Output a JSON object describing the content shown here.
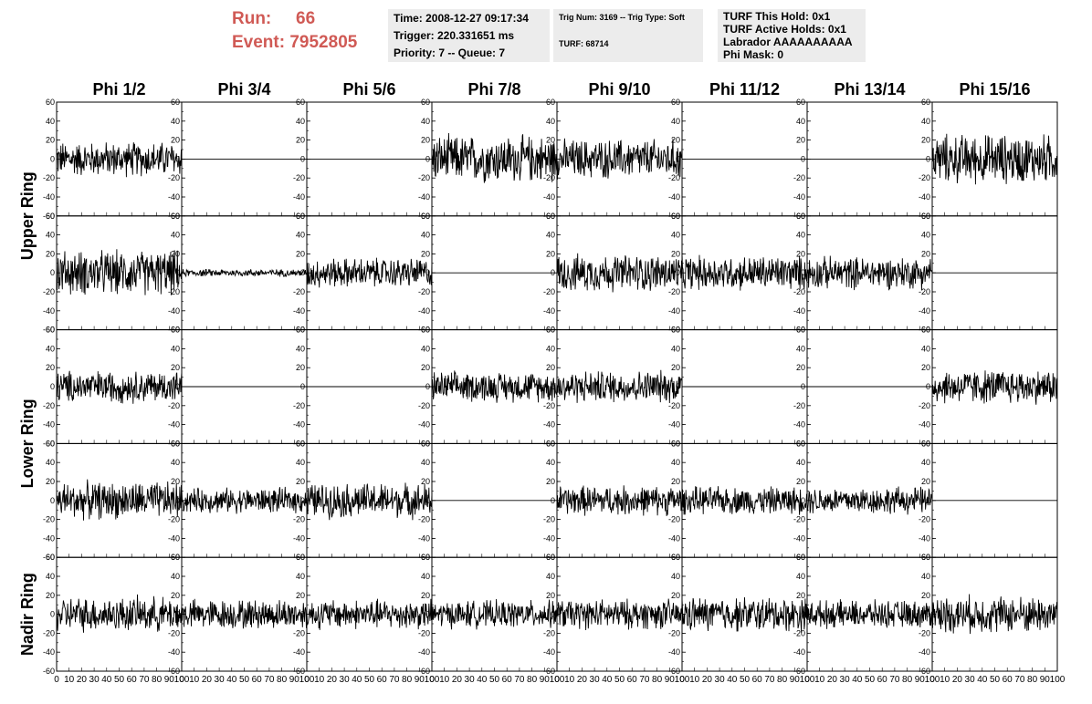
{
  "header": {
    "run_label": "Run:",
    "run_value": "66",
    "event_label": "Event:",
    "event_value": "7952805",
    "time_line": "Time: 2008-12-27 09:17:34",
    "trigger_line": "Trigger: 220.331651 ms",
    "priority_line": "Priority: 7 -- Queue: 7",
    "trig_num_line": "Trig Num: 3169 -- Trig Type: Soft",
    "turf_line": "TURF: 68714",
    "turf_this_hold": "TURF This Hold: 0x1",
    "turf_active_holds": "TURF Active Holds: 0x1",
    "labrador": "Labrador AAAAAAAAAA",
    "phi_mask": "Phi Mask: 0"
  },
  "colors": {
    "run_text": "#d05a55",
    "info_bg": "#ececec",
    "trace": "#000000"
  },
  "chart_data": {
    "type": "line",
    "columns": [
      "Phi 1/2",
      "Phi 3/4",
      "Phi 5/6",
      "Phi 7/8",
      "Phi 9/10",
      "Phi 11/12",
      "Phi 13/14",
      "Phi 15/16"
    ],
    "row_groups": [
      {
        "label": "Upper Ring",
        "rows": 2
      },
      {
        "label": "Lower Ring",
        "rows": 2
      },
      {
        "label": "Nadir Ring",
        "rows": 1
      }
    ],
    "x_range": [
      0,
      100
    ],
    "x_ticks": [
      "0",
      "10",
      "20",
      "30",
      "40",
      "50",
      "60",
      "70",
      "80",
      "90",
      "100"
    ],
    "y_range": [
      -60,
      60
    ],
    "y_ticks": [
      "60",
      "40",
      "20",
      "0",
      "-20",
      "-40",
      "-60"
    ],
    "grid": false,
    "traces": [
      [
        14,
        0,
        0,
        19,
        16,
        0,
        0,
        20
      ],
      [
        18,
        3,
        12,
        0,
        15,
        14,
        13,
        0
      ],
      [
        13,
        0,
        0,
        12,
        13,
        0,
        0,
        14
      ],
      [
        15,
        10,
        14,
        0,
        12,
        11,
        11,
        0
      ],
      [
        14,
        12,
        12,
        11,
        12,
        14,
        11,
        15
      ]
    ]
  }
}
